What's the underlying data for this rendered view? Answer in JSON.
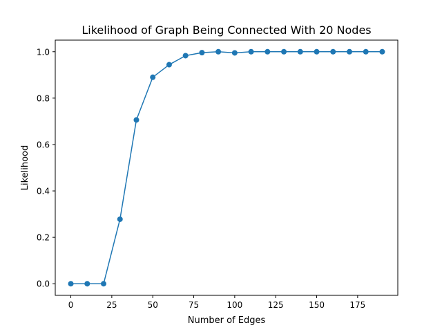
{
  "chart_data": {
    "type": "line",
    "title": "Likelihood of Graph Being Connected With 20 Nodes",
    "xlabel": "Number of Edges",
    "ylabel": "Likelihood",
    "xlim": [
      -9.5,
      199.5
    ],
    "ylim": [
      -0.05,
      1.05
    ],
    "xticks": [
      0,
      25,
      50,
      75,
      100,
      125,
      150,
      175
    ],
    "yticks": [
      0.0,
      0.2,
      0.4,
      0.6,
      0.8,
      1.0
    ],
    "xtick_labels": [
      "0",
      "25",
      "50",
      "75",
      "100",
      "125",
      "150",
      "175"
    ],
    "ytick_labels": [
      "0.0",
      "0.2",
      "0.4",
      "0.6",
      "0.8",
      "1.0"
    ],
    "grid": false,
    "series": [
      {
        "color": "#1f77b4",
        "marker": "circle",
        "x": [
          0,
          10,
          20,
          30,
          40,
          50,
          60,
          70,
          80,
          90,
          100,
          110,
          120,
          130,
          140,
          150,
          160,
          170,
          180,
          190
        ],
        "y": [
          0.0,
          0.0,
          0.0,
          0.278,
          0.706,
          0.89,
          0.944,
          0.983,
          0.996,
          1.0,
          0.995,
          1.0,
          1.0,
          1.0,
          1.0,
          1.0,
          1.0,
          1.0,
          1.0,
          1.0
        ]
      }
    ]
  }
}
